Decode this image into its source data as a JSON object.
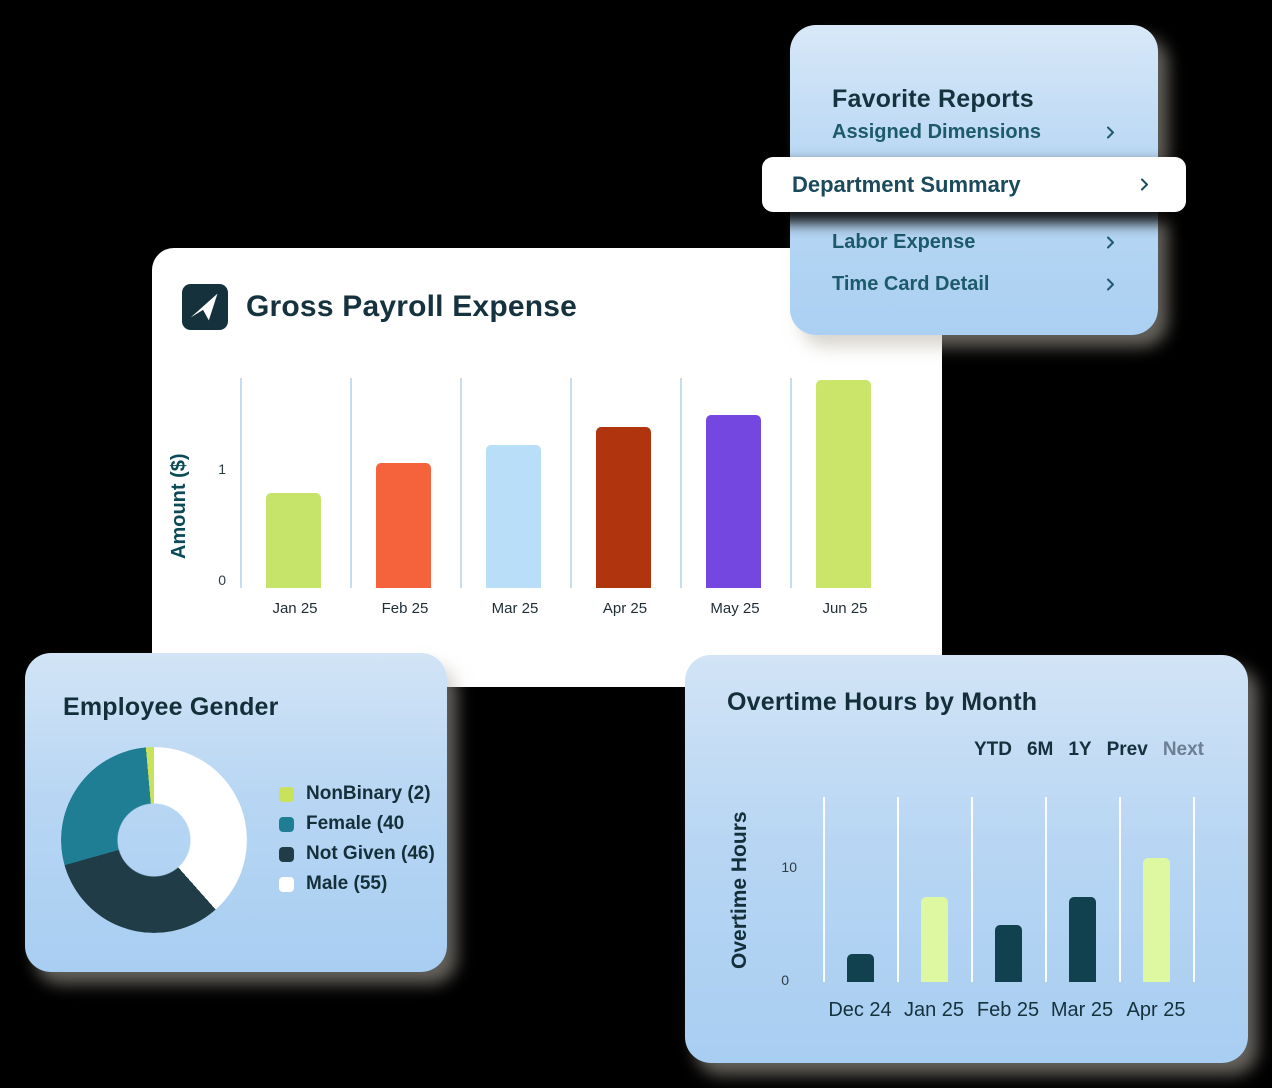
{
  "background_color": "#000000",
  "favorite_reports": {
    "title": "Favorite Reports",
    "items": [
      {
        "label": "Assigned Dimensions",
        "active": false
      },
      {
        "label": "Department Summary",
        "active": true
      },
      {
        "label": "Labor Expense",
        "active": false
      },
      {
        "label": "Time Card Detail",
        "active": false
      }
    ]
  },
  "overtime": {
    "controls": [
      {
        "label": "YTD",
        "enabled": true
      },
      {
        "label": "6M",
        "enabled": true
      },
      {
        "label": "1Y",
        "enabled": true
      },
      {
        "label": "Prev",
        "enabled": true
      },
      {
        "label": "Next",
        "enabled": false
      }
    ]
  },
  "chart_data": [
    {
      "id": "gross_payroll_expense",
      "type": "bar",
      "title": "Gross Payroll Expense",
      "categories": [
        "Jan 25",
        "Feb 25",
        "Mar 25",
        "Apr 25",
        "May 25",
        "Jun 25"
      ],
      "values": [
        0.8,
        1.05,
        1.2,
        1.35,
        1.45,
        1.75
      ],
      "bar_colors": [
        "#c6e36a",
        "#f4633c",
        "#b9def8",
        "#b0350f",
        "#7448e0",
        "#cbe56b"
      ],
      "xlabel": "",
      "ylabel": "Amount ($)",
      "yticks": [
        0,
        1
      ],
      "ylim": [
        0,
        1.75
      ],
      "grid": "vertical",
      "gridline_color": "#c7ddef"
    },
    {
      "id": "employee_gender",
      "type": "donut",
      "title": "Employee Gender",
      "slices": [
        {
          "label": "NonBinary (2)",
          "value": 2,
          "color": "#c9e25c"
        },
        {
          "label": "Female (40",
          "value": 40,
          "color": "#1f7e93"
        },
        {
          "label": "Not Given (46)",
          "value": 46,
          "color": "#203d47"
        },
        {
          "label": "Male (55)",
          "value": 55,
          "color": "#ffffff"
        }
      ],
      "total": 143,
      "legend_position": "right",
      "clockwise_order_from_top": [
        "Male (55)",
        "Not Given (46)",
        "Female (40",
        "NonBinary (2)"
      ]
    },
    {
      "id": "overtime_hours_by_month",
      "type": "bar",
      "title": "Overtime Hours by Month",
      "categories": [
        "Dec 24",
        "Jan 25",
        "Feb 25",
        "Mar 25",
        "Apr 25"
      ],
      "values": [
        2.5,
        7.5,
        5,
        7.5,
        11
      ],
      "bar_colors": [
        "#11404f",
        "#def7a1",
        "#11404f",
        "#11404f",
        "#def7a1"
      ],
      "xlabel": "",
      "ylabel": "Overtime Hours",
      "yticks": [
        0,
        10
      ],
      "ylim": [
        0,
        16
      ],
      "grid": "vertical",
      "gridline_color": "#ffffff"
    }
  ]
}
